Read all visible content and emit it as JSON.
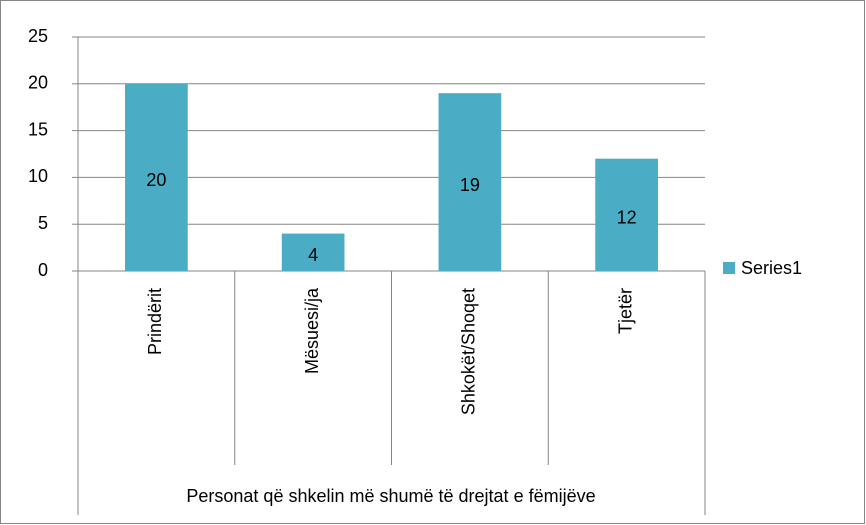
{
  "chart_data": {
    "type": "bar",
    "categories": [
      "Prindërit",
      "Mësuesi/ja",
      "Shkokët/Shoqet",
      "Tjetër"
    ],
    "series": [
      {
        "name": "Series1",
        "color": "#4bacc6",
        "values": [
          20,
          4,
          19,
          12
        ]
      }
    ],
    "x_label": "Personat që shkelin më shumë të drejtat e fëmijëve",
    "ylim": [
      0,
      25
    ],
    "yticks": [
      0,
      5,
      10,
      15,
      20,
      25
    ],
    "grid": true,
    "legend": "right"
  }
}
